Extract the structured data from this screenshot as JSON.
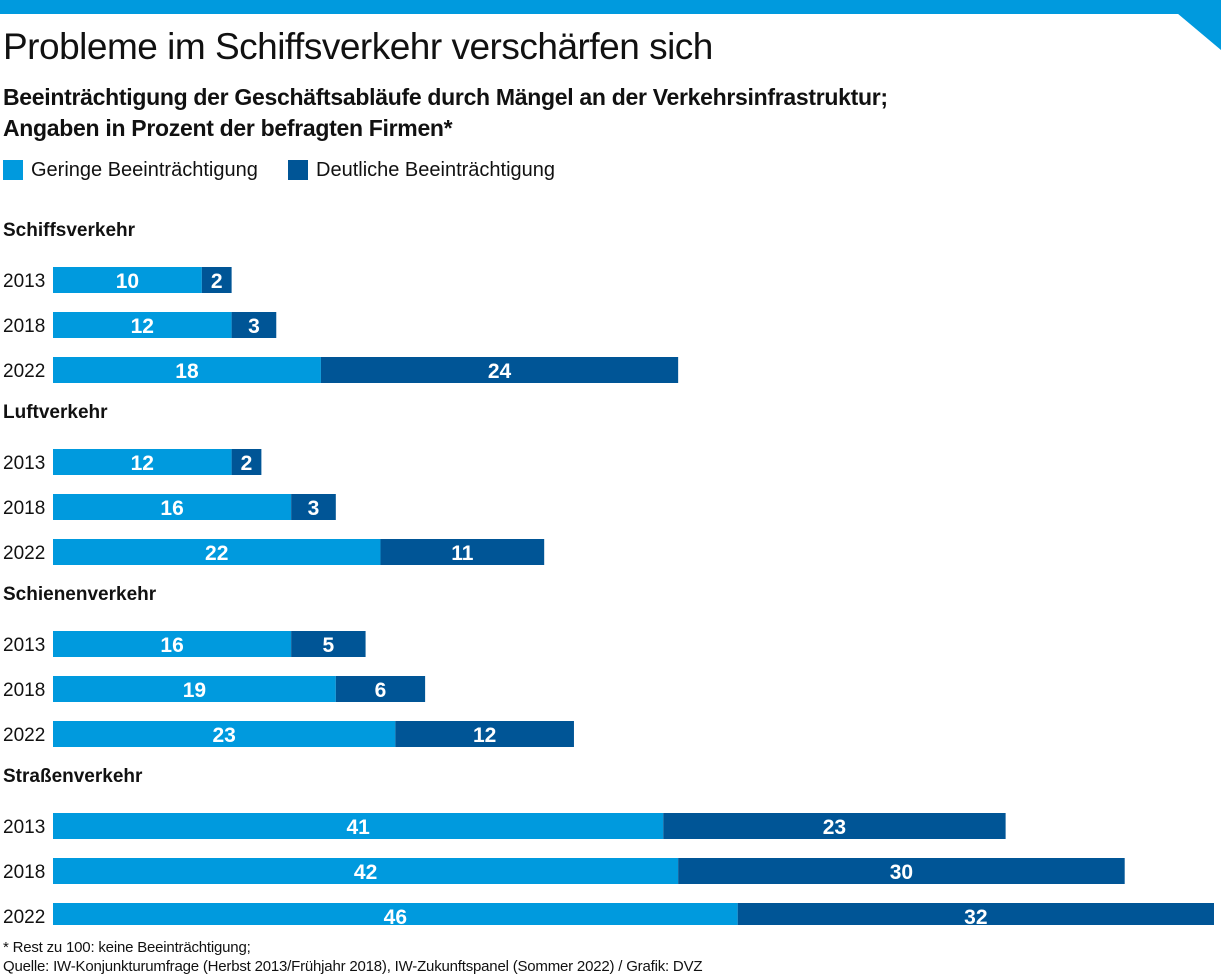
{
  "header": {
    "title": "Probleme im Schiffsverkehr verschärfen sich",
    "subtitle_line1": "Beeinträchtigung der Geschäftsabläufe durch Mängel an der Verkehrsinfrastruktur;",
    "subtitle_line2": "Angaben in Prozent der befragten Firmen*"
  },
  "legend": {
    "light_label": "Geringe Beeinträchtigung",
    "dark_label": "Deutliche Beeinträchtigung"
  },
  "colors": {
    "accent": "#009ADE",
    "light": "#009ADE",
    "dark": "#005596",
    "text": "#111111",
    "bar_text": "#ffffff"
  },
  "chart_data": {
    "type": "bar",
    "orientation": "horizontal",
    "stacked": true,
    "xlim": [
      0,
      78
    ],
    "grid": false,
    "legend_position": "top-left",
    "series_names": [
      "Geringe Beeinträchtigung",
      "Deutliche Beeinträchtigung"
    ],
    "groups": [
      {
        "name": "Schiffsverkehr",
        "rows": [
          {
            "year": "2013",
            "values": [
              10,
              2
            ]
          },
          {
            "year": "2018",
            "values": [
              12,
              3
            ]
          },
          {
            "year": "2022",
            "values": [
              18,
              24
            ]
          }
        ]
      },
      {
        "name": "Luftverkehr",
        "rows": [
          {
            "year": "2013",
            "values": [
              12,
              2
            ]
          },
          {
            "year": "2018",
            "values": [
              16,
              3
            ]
          },
          {
            "year": "2022",
            "values": [
              22,
              11
            ]
          }
        ]
      },
      {
        "name": "Schienenverkehr",
        "rows": [
          {
            "year": "2013",
            "values": [
              16,
              5
            ]
          },
          {
            "year": "2018",
            "values": [
              19,
              6
            ]
          },
          {
            "year": "2022",
            "values": [
              23,
              12
            ]
          }
        ]
      },
      {
        "name": "Straßenverkehr",
        "rows": [
          {
            "year": "2013",
            "values": [
              41,
              23
            ]
          },
          {
            "year": "2018",
            "values": [
              42,
              30
            ]
          },
          {
            "year": "2022",
            "values": [
              46,
              32
            ]
          }
        ]
      }
    ]
  },
  "footer": {
    "note": "* Rest zu 100: keine Beeinträchtigung;",
    "source": "Quelle: IW-Konjunkturumfrage (Herbst 2013/Frühjahr 2018), IW-Zukunftspanel (Sommer 2022) / Grafik: DVZ"
  }
}
